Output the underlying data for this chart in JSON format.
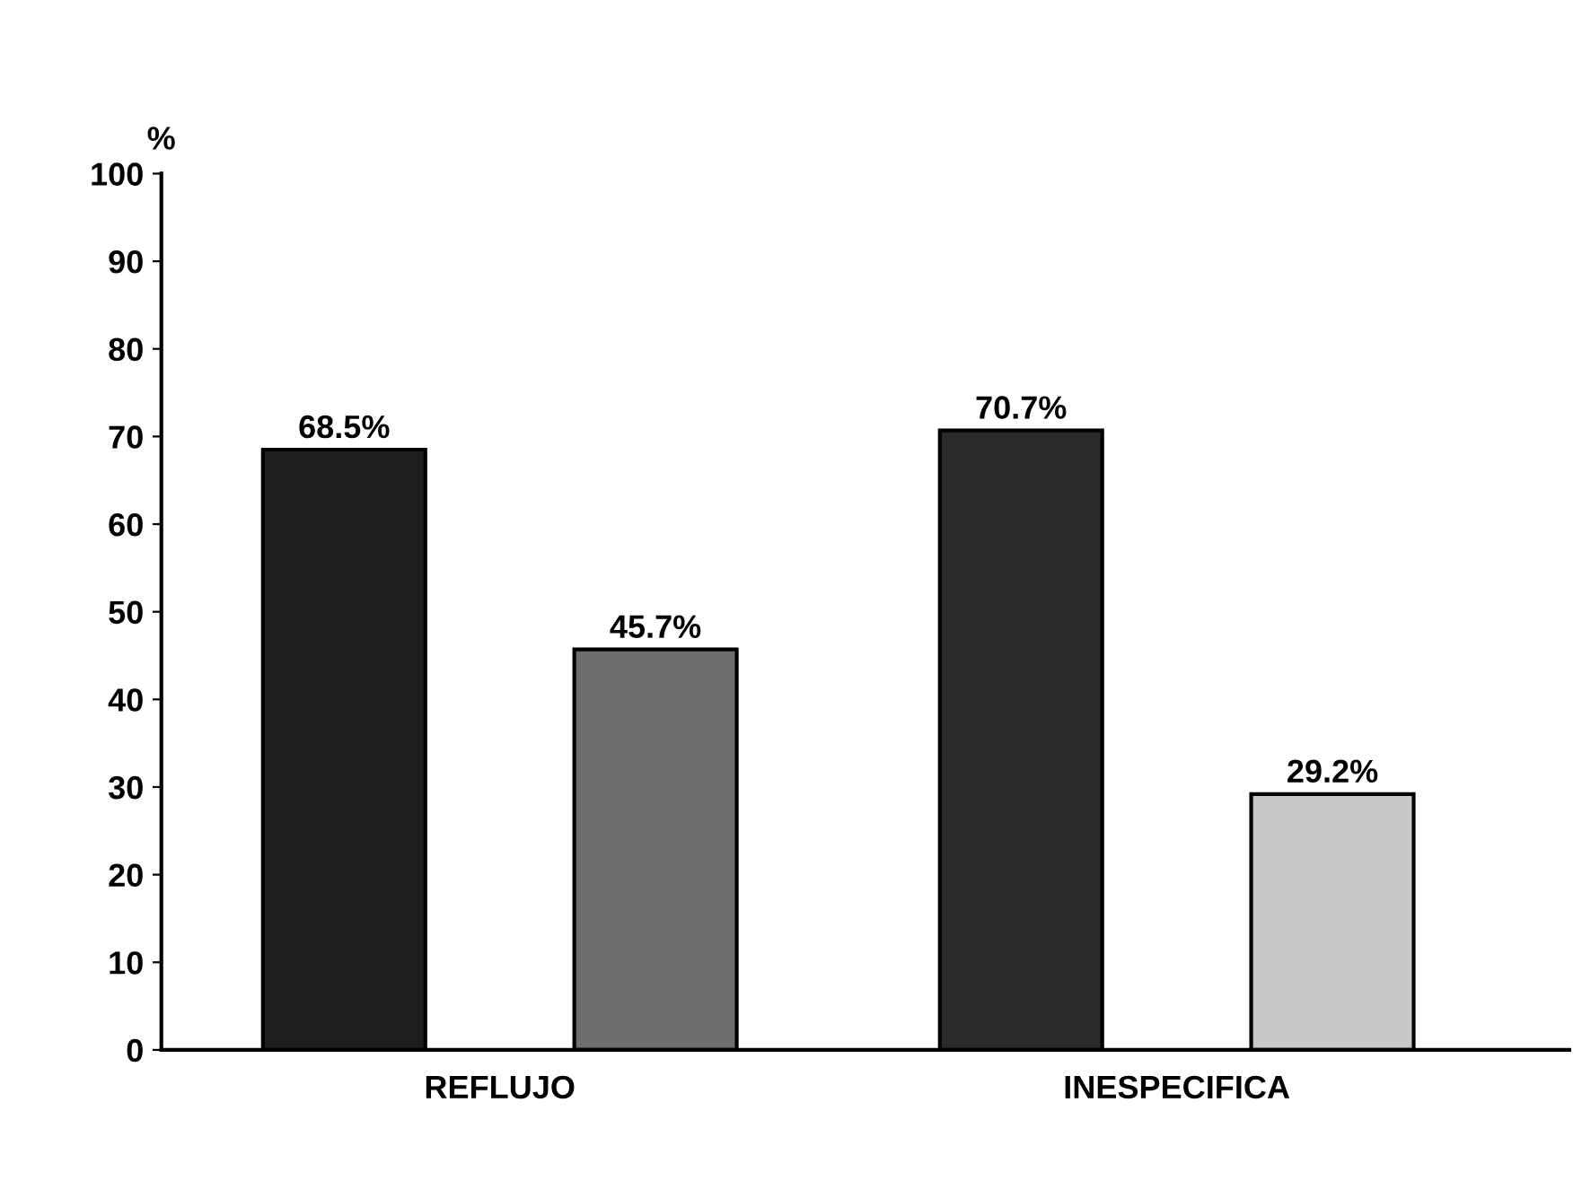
{
  "chart_data": {
    "type": "bar",
    "ylabel": "%",
    "categories": [
      "REFLUJO",
      "INESPECIFICA"
    ],
    "series": [
      {
        "colors": [
          "#1e1e1e",
          "#2a2a2a"
        ],
        "values": [
          68.5,
          70.7
        ],
        "value_labels": [
          "68.5%",
          "70.7%"
        ]
      },
      {
        "colors": [
          "#6e6e6e",
          "#c8c8c8"
        ],
        "values": [
          45.7,
          29.2
        ],
        "value_labels": [
          "45.7%",
          "29.2%"
        ]
      }
    ],
    "ylim": [
      0,
      100
    ],
    "yticks": [
      0,
      10,
      20,
      30,
      40,
      50,
      60,
      70,
      80,
      90,
      100
    ],
    "grid": false,
    "legend": false
  }
}
